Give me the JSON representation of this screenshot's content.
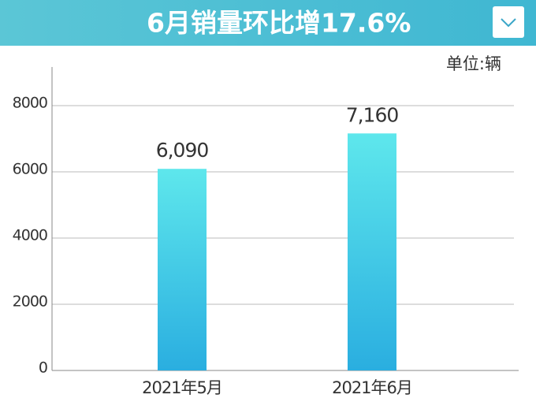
{
  "chart_data": {
    "type": "bar",
    "title": "6月销量环比增17.6%",
    "unit_label": "单位:辆",
    "categories": [
      "2021年5月",
      "2021年6月"
    ],
    "values": [
      6090,
      7160
    ],
    "value_labels": [
      "6,090",
      "7,160"
    ],
    "ylim": [
      0,
      9000
    ],
    "yticks": [
      0,
      2000,
      4000,
      6000,
      8000
    ],
    "grid": true
  }
}
